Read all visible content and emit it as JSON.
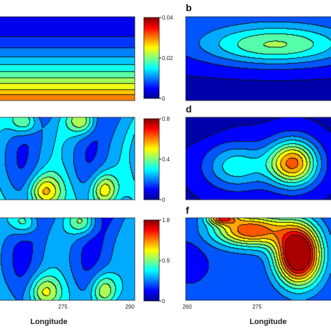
{
  "chart_data": [
    {
      "type": "heatmap",
      "panel": "a",
      "colorbar": {
        "min": 0,
        "max": 0.04,
        "ticks": [
          "0.04",
          "0.02",
          "0"
        ]
      },
      "field": "lat-bands",
      "params": {
        "max": 0.033,
        "peak_at_bottom": true
      },
      "levels": 14
    },
    {
      "type": "heatmap",
      "panel": "b",
      "field": "ellipse",
      "params": {
        "cx": 0.62,
        "cy": 0.34,
        "rx": 0.55,
        "ry": 0.26,
        "peak": 0.55
      },
      "levels": 12
    },
    {
      "type": "heatmap",
      "panel": "c",
      "colorbar": {
        "min": 0,
        "max": 0.8,
        "ticks": [
          "0.8",
          "0.4",
          "0"
        ]
      },
      "field": "waves",
      "params": {
        "peak": 0.68
      },
      "levels": 12
    },
    {
      "type": "heatmap",
      "panel": "d",
      "field": "blob",
      "params": {
        "cx": 0.74,
        "cy": 0.56,
        "peak": 0.9
      },
      "levels": 12
    },
    {
      "type": "heatmap",
      "panel": "e",
      "colorbar": {
        "min": 0,
        "max": 1.8,
        "ticks": [
          "1.8",
          "0.9",
          "0"
        ]
      },
      "xaxis": {
        "ticks": [
          "275",
          "290"
        ],
        "label": "Longitude"
      },
      "field": "waves",
      "params": {
        "peak": 1.35
      },
      "levels": 12
    },
    {
      "type": "heatmap",
      "panel": "f",
      "xaxis": {
        "ticks": [
          "260",
          "275"
        ],
        "label": "Longitude"
      },
      "field": "blob2",
      "params": {
        "cx": 0.78,
        "cy": 0.45,
        "peak": 1.45
      },
      "levels": 12
    }
  ],
  "panel_labels": [
    "b",
    "d",
    "f"
  ]
}
